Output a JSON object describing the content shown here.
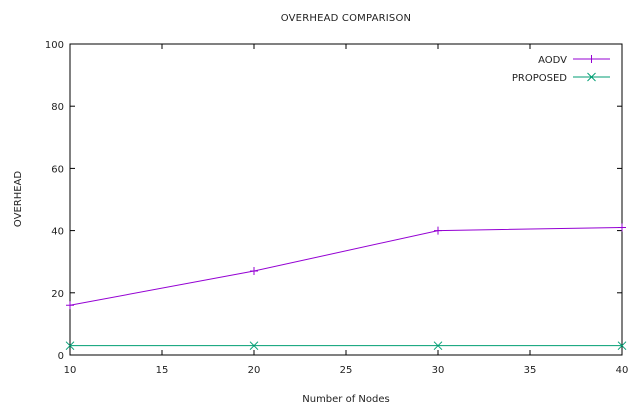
{
  "chart_data": {
    "type": "line",
    "title": "OVERHEAD COMPARISON",
    "xlabel": "Number of Nodes",
    "ylabel": "OVERHEAD",
    "xlim": [
      10,
      40
    ],
    "ylim": [
      0,
      100
    ],
    "xticks": [
      10,
      15,
      20,
      25,
      30,
      35,
      40
    ],
    "yticks": [
      0,
      20,
      40,
      60,
      80,
      100
    ],
    "grid": false,
    "legend_position": "top-right",
    "series": [
      {
        "name": "AODV",
        "color": "#9400d3",
        "marker": "plus",
        "x": [
          10,
          20,
          30,
          40
        ],
        "y": [
          16,
          27,
          40,
          41
        ]
      },
      {
        "name": "PROPOSED",
        "color": "#009e73",
        "marker": "x",
        "x": [
          10,
          20,
          30,
          40
        ],
        "y": [
          3,
          3,
          3,
          3
        ]
      }
    ]
  }
}
